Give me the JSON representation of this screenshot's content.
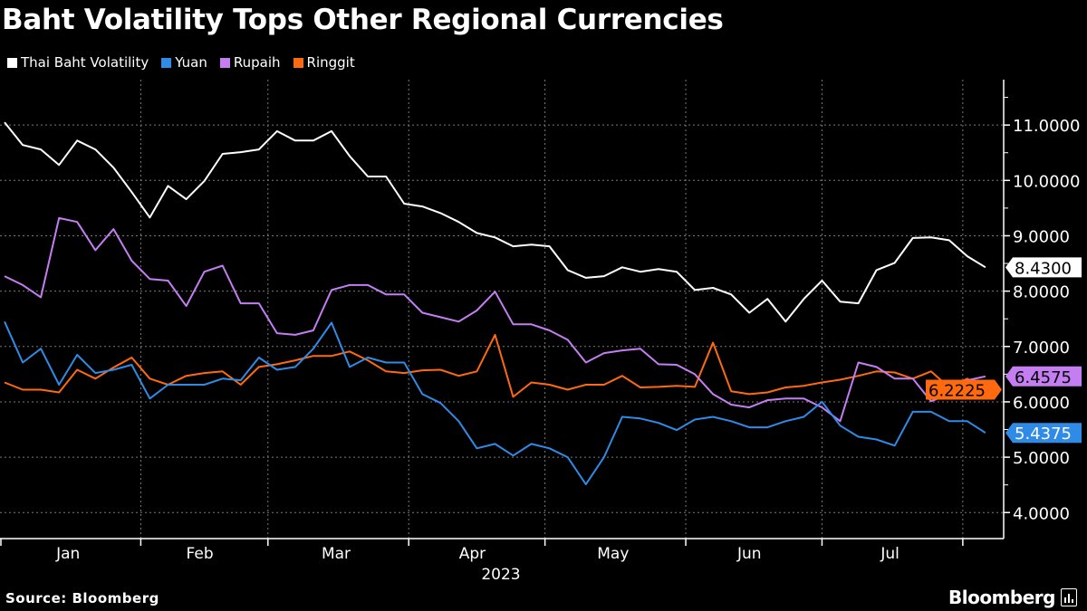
{
  "title": "Baht Volatility Tops Other Regional Currencies",
  "source": "Source: Bloomberg",
  "logo": "Bloomberg",
  "chart_data": {
    "type": "line",
    "title": "Baht Volatility Tops Other Regional Currencies",
    "xlabel": "2023",
    "ylabel": "",
    "xlim": [
      "2023-01-01",
      "2023-08-10"
    ],
    "ylim": [
      3.53,
      11.82
    ],
    "y_axis_position": "right",
    "grid": true,
    "legend_position": "top-left",
    "x_tick_labels": [
      {
        "label": "Jan",
        "date": "2023-01-16"
      },
      {
        "label": "Feb",
        "date": "2023-02-14"
      },
      {
        "label": "Mar",
        "date": "2023-03-16"
      },
      {
        "label": "Apr",
        "date": "2023-04-15"
      },
      {
        "label": "May",
        "date": "2023-05-16"
      },
      {
        "label": "Jun",
        "date": "2023-06-15"
      },
      {
        "label": "Jul",
        "date": "2023-07-16"
      }
    ],
    "month_boundaries": [
      "2023-01-01",
      "2023-02-01",
      "2023-03-01",
      "2023-04-01",
      "2023-05-01",
      "2023-06-01",
      "2023-07-01",
      "2023-08-01"
    ],
    "y_ticks": [
      {
        "value": 4,
        "label": "4.0000"
      },
      {
        "value": 5,
        "label": "5.0000"
      },
      {
        "value": 6,
        "label": "6.0000"
      },
      {
        "value": 7,
        "label": "7.0000"
      },
      {
        "value": 8,
        "label": "8.0000"
      },
      {
        "value": 9,
        "label": "9.0000"
      },
      {
        "value": 10,
        "label": "10.0000"
      },
      {
        "value": 11,
        "label": "11.0000"
      }
    ],
    "dates": [
      "2023-01-02",
      "2023-01-06",
      "2023-01-10",
      "2023-01-14",
      "2023-01-18",
      "2023-01-22",
      "2023-01-26",
      "2023-01-30",
      "2023-02-03",
      "2023-02-07",
      "2023-02-11",
      "2023-02-15",
      "2023-02-19",
      "2023-02-23",
      "2023-02-27",
      "2023-03-03",
      "2023-03-07",
      "2023-03-11",
      "2023-03-15",
      "2023-03-19",
      "2023-03-23",
      "2023-03-27",
      "2023-03-31",
      "2023-04-04",
      "2023-04-08",
      "2023-04-12",
      "2023-04-16",
      "2023-04-20",
      "2023-04-24",
      "2023-04-28",
      "2023-05-02",
      "2023-05-06",
      "2023-05-10",
      "2023-05-14",
      "2023-05-18",
      "2023-05-22",
      "2023-05-26",
      "2023-05-30",
      "2023-06-03",
      "2023-06-07",
      "2023-06-11",
      "2023-06-15",
      "2023-06-19",
      "2023-06-23",
      "2023-06-27",
      "2023-07-01",
      "2023-07-05",
      "2023-07-09",
      "2023-07-13",
      "2023-07-17",
      "2023-07-21",
      "2023-07-25",
      "2023-07-29",
      "2023-08-02",
      "2023-08-06"
    ],
    "series": [
      {
        "name": "Thai Baht Volatility",
        "color": "#ffffff",
        "text_color": "#000000",
        "last_label": "8.4300",
        "values": [
          11.05,
          10.64,
          10.56,
          10.28,
          10.72,
          10.56,
          10.23,
          9.79,
          9.33,
          9.9,
          9.66,
          9.99,
          10.48,
          10.51,
          10.56,
          10.89,
          10.72,
          10.72,
          10.89,
          10.44,
          10.07,
          10.07,
          9.58,
          9.53,
          9.41,
          9.25,
          9.05,
          8.97,
          8.81,
          8.84,
          8.81,
          8.38,
          8.24,
          8.27,
          8.43,
          8.35,
          8.4,
          8.35,
          8.02,
          8.06,
          7.94,
          7.61,
          7.86,
          7.45,
          7.86,
          8.19,
          7.81,
          7.78,
          8.38,
          8.51,
          8.96,
          8.97,
          8.92,
          8.63,
          8.43
        ]
      },
      {
        "name": "Yuan",
        "color": "#2f8be6",
        "text_color": "#ffffff",
        "last_label": "5.4375",
        "values": [
          7.45,
          6.71,
          6.96,
          6.31,
          6.85,
          6.52,
          6.58,
          6.67,
          6.06,
          6.31,
          6.31,
          6.31,
          6.42,
          6.39,
          6.8,
          6.58,
          6.63,
          6.96,
          7.43,
          6.63,
          6.8,
          6.71,
          6.71,
          6.14,
          5.98,
          5.65,
          5.16,
          5.24,
          5.03,
          5.24,
          5.16,
          5.0,
          4.51,
          5.0,
          5.73,
          5.7,
          5.62,
          5.49,
          5.68,
          5.73,
          5.65,
          5.54,
          5.54,
          5.65,
          5.73,
          6.0,
          5.57,
          5.37,
          5.32,
          5.21,
          5.82,
          5.82,
          5.65,
          5.65,
          5.44
        ]
      },
      {
        "name": "Rupaih",
        "color": "#c47ef2",
        "text_color": "#000000",
        "last_label": "6.4575",
        "values": [
          8.27,
          8.11,
          7.89,
          9.32,
          9.25,
          8.74,
          9.12,
          8.55,
          8.22,
          8.19,
          7.73,
          8.35,
          8.46,
          7.78,
          7.78,
          7.24,
          7.21,
          7.29,
          8.02,
          8.11,
          8.11,
          7.94,
          7.94,
          7.61,
          7.53,
          7.45,
          7.65,
          7.99,
          7.4,
          7.4,
          7.29,
          7.12,
          6.71,
          6.88,
          6.93,
          6.96,
          6.68,
          6.67,
          6.5,
          6.14,
          5.95,
          5.9,
          6.03,
          6.06,
          6.06,
          5.9,
          5.65,
          6.71,
          6.63,
          6.42,
          6.42,
          6.01,
          6.14,
          6.39,
          6.46
        ]
      },
      {
        "name": "Ringgit",
        "color": "#ff6a10",
        "text_color": "#000000",
        "last_label": "6.2225",
        "values": [
          6.35,
          6.22,
          6.22,
          6.17,
          6.58,
          6.42,
          6.62,
          6.8,
          6.42,
          6.31,
          6.47,
          6.52,
          6.55,
          6.31,
          6.63,
          6.68,
          6.75,
          6.83,
          6.83,
          6.91,
          6.75,
          6.55,
          6.52,
          6.57,
          6.58,
          6.47,
          6.55,
          7.21,
          6.09,
          6.35,
          6.31,
          6.22,
          6.31,
          6.31,
          6.47,
          6.26,
          6.27,
          6.29,
          6.27,
          7.07,
          6.19,
          6.14,
          6.17,
          6.26,
          6.29,
          6.35,
          6.4,
          6.47,
          6.55,
          6.53,
          6.42,
          6.55,
          6.26,
          6.42,
          6.22
        ]
      }
    ]
  }
}
